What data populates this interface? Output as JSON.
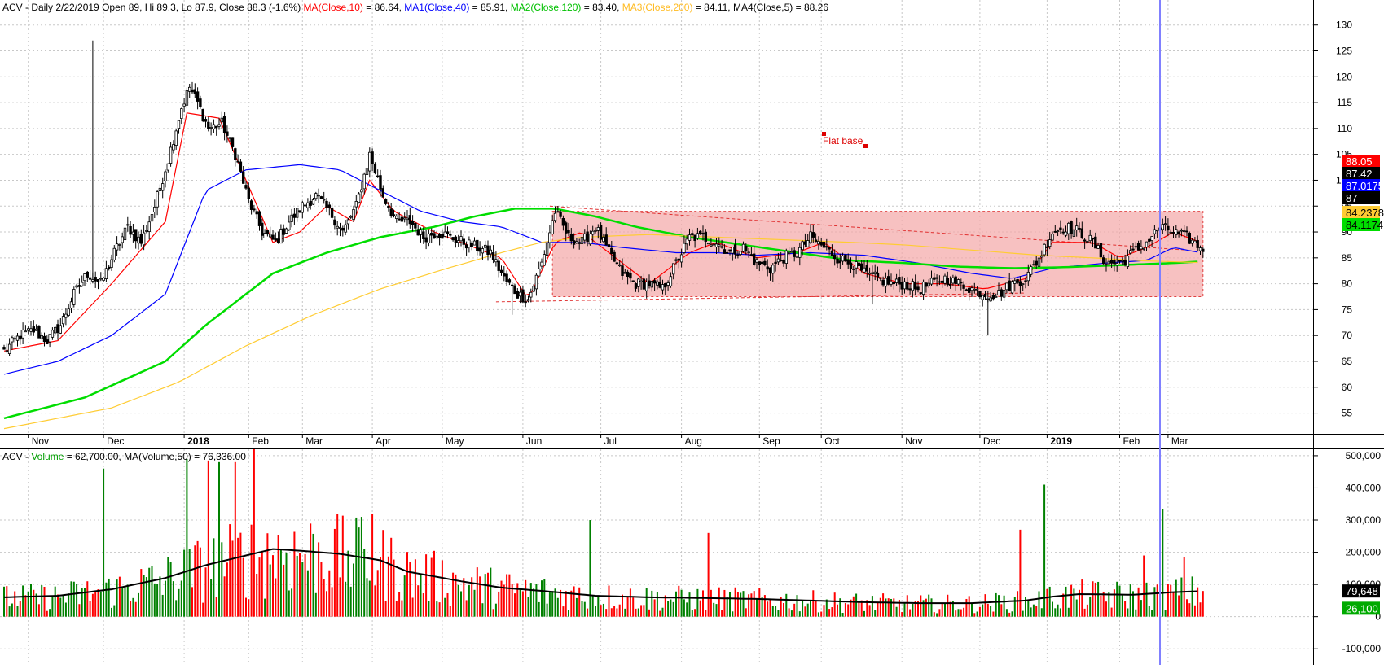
{
  "header": {
    "price_header": {
      "prefix": "ACV - Daily 2/22/2019 Open 89, Hi 89.3, Lo 87.9, Close 88.3 (-1.6%) ",
      "ma1_label": "MA(Close,10)",
      "ma1_value": " = 86.64, ",
      "ma2_label": "MA1(Close,40)",
      "ma2_value": " = 85.91, ",
      "ma3_label": "MA2(Close,120)",
      "ma3_value": " = 83.40, ",
      "ma4_label": "MA3(Close,200)",
      "ma4_value": " = 84.11, MA4(Close,5) = 88.26"
    },
    "volume_header": {
      "prefix": "ACV - ",
      "vol_label": "Volume",
      "rest": " = 62,700.00, MA(Volume,50) = 76,336.00"
    }
  },
  "annotation": {
    "flat_base": "Flat base"
  },
  "colors": {
    "up": "#008000",
    "down": "#ff0000",
    "candle": "#000000",
    "ma10": "#ff0000",
    "ma40": "#0000ff",
    "ma120": "#00dd00",
    "ma200": "#ffcc33",
    "base_fill": "#f4a6a6",
    "cursor": "#8080ff",
    "grid": "#c8c8c8"
  },
  "chart_data": [
    {
      "type": "candlestick",
      "title": "ACV - Daily 2/22/2019",
      "ylim": [
        51,
        132
      ],
      "y_ticks": [
        55,
        60,
        65,
        70,
        75,
        80,
        85,
        90,
        95,
        100,
        105,
        110,
        115,
        120,
        125,
        130
      ],
      "x_ticks": [
        "Nov",
        "Dec",
        "2018",
        "Feb",
        "Mar",
        "Apr",
        "May",
        "Jun",
        "Jul",
        "Aug",
        "Sep",
        "Oct",
        "Nov",
        "Dec",
        "2019",
        "Feb",
        "Mar"
      ],
      "price_anchors": [
        [
          0,
          67
        ],
        [
          6,
          70
        ],
        [
          11,
          71
        ],
        [
          16,
          69
        ],
        [
          21,
          72
        ],
        [
          26,
          78
        ],
        [
          31,
          82
        ],
        [
          36,
          80
        ],
        [
          41,
          86
        ],
        [
          46,
          91
        ],
        [
          51,
          88
        ],
        [
          56,
          95
        ],
        [
          61,
          104
        ],
        [
          66,
          114
        ],
        [
          69,
          118
        ],
        [
          72,
          115
        ],
        [
          76,
          110
        ],
        [
          81,
          111
        ],
        [
          86,
          105
        ],
        [
          91,
          96
        ],
        [
          96,
          90
        ],
        [
          101,
          88
        ],
        [
          106,
          92
        ],
        [
          111,
          95
        ],
        [
          116,
          97
        ],
        [
          121,
          94
        ],
        [
          126,
          90
        ],
        [
          131,
          95
        ],
        [
          136,
          105
        ],
        [
          141,
          97
        ],
        [
          146,
          92
        ],
        [
          151,
          92
        ],
        [
          156,
          89
        ],
        [
          161,
          90
        ],
        [
          166,
          89
        ],
        [
          171,
          88
        ],
        [
          176,
          87
        ],
        [
          181,
          86
        ],
        [
          186,
          81
        ],
        [
          191,
          78
        ],
        [
          195,
          77
        ],
        [
          200,
          84
        ],
        [
          205,
          94
        ],
        [
          210,
          89
        ],
        [
          215,
          88
        ],
        [
          220,
          91
        ],
        [
          225,
          86
        ],
        [
          230,
          82
        ],
        [
          235,
          80
        ],
        [
          240,
          80
        ],
        [
          245,
          79
        ],
        [
          250,
          84
        ],
        [
          255,
          89
        ],
        [
          260,
          89
        ],
        [
          265,
          88
        ],
        [
          270,
          86
        ],
        [
          275,
          87
        ],
        [
          280,
          84
        ],
        [
          285,
          83
        ],
        [
          290,
          85
        ],
        [
          295,
          86
        ],
        [
          300,
          89
        ],
        [
          305,
          87
        ],
        [
          310,
          85
        ],
        [
          315,
          84
        ],
        [
          320,
          82
        ],
        [
          325,
          81
        ],
        [
          330,
          80
        ],
        [
          335,
          80
        ],
        [
          340,
          79
        ],
        [
          345,
          80
        ],
        [
          350,
          81
        ],
        [
          355,
          80
        ],
        [
          360,
          79
        ],
        [
          365,
          78
        ],
        [
          370,
          78
        ],
        [
          375,
          80
        ],
        [
          380,
          81
        ],
        [
          385,
          85
        ],
        [
          390,
          90
        ],
        [
          395,
          91
        ],
        [
          400,
          90
        ],
        [
          405,
          88
        ],
        [
          410,
          84
        ],
        [
          415,
          84
        ],
        [
          420,
          86
        ],
        [
          425,
          88
        ],
        [
          430,
          91
        ],
        [
          435,
          90
        ],
        [
          440,
          89
        ],
        [
          445,
          87
        ]
      ],
      "ma_lines": [
        {
          "name": "MA(Close,10)",
          "color": "ma10",
          "values": [
            [
              0,
              67
            ],
            [
              20,
              69
            ],
            [
              40,
              80
            ],
            [
              60,
              92
            ],
            [
              68,
              113
            ],
            [
              80,
              112
            ],
            [
              90,
              100
            ],
            [
              100,
              88
            ],
            [
              110,
              90
            ],
            [
              120,
              95
            ],
            [
              130,
              92
            ],
            [
              136,
              100
            ],
            [
              145,
              94
            ],
            [
              160,
              90
            ],
            [
              175,
              87
            ],
            [
              185,
              85
            ],
            [
              195,
              77
            ],
            [
              205,
              88
            ],
            [
              215,
              90
            ],
            [
              225,
              86
            ],
            [
              240,
              80
            ],
            [
              255,
              86
            ],
            [
              265,
              88
            ],
            [
              280,
              85
            ],
            [
              295,
              86
            ],
            [
              305,
              88
            ],
            [
              320,
              82
            ],
            [
              335,
              80
            ],
            [
              350,
              80
            ],
            [
              365,
              79
            ],
            [
              380,
              81
            ],
            [
              390,
              88
            ],
            [
              405,
              88
            ],
            [
              415,
              85
            ],
            [
              425,
              87
            ],
            [
              435,
              90
            ],
            [
              445,
              88
            ]
          ]
        },
        {
          "name": "MA1(Close,40)",
          "color": "ma40",
          "values": [
            [
              0,
              62.5
            ],
            [
              20,
              65
            ],
            [
              40,
              70
            ],
            [
              60,
              78
            ],
            [
              75,
              98
            ],
            [
              90,
              102
            ],
            [
              110,
              103
            ],
            [
              125,
              102
            ],
            [
              140,
              98
            ],
            [
              155,
              94
            ],
            [
              170,
              92
            ],
            [
              185,
              91
            ],
            [
              200,
              88
            ],
            [
              215,
              88
            ],
            [
              230,
              87
            ],
            [
              250,
              86
            ],
            [
              265,
              86
            ],
            [
              280,
              85.5
            ],
            [
              300,
              86
            ],
            [
              320,
              85.5
            ],
            [
              340,
              84
            ],
            [
              360,
              82
            ],
            [
              375,
              81
            ],
            [
              390,
              83
            ],
            [
              410,
              84
            ],
            [
              425,
              84.5
            ],
            [
              435,
              87
            ],
            [
              445,
              86
            ]
          ]
        },
        {
          "name": "MA2(Close,120)",
          "color": "ma120",
          "values": [
            [
              0,
              54
            ],
            [
              30,
              58
            ],
            [
              60,
              65
            ],
            [
              75,
              72
            ],
            [
              100,
              82
            ],
            [
              120,
              86
            ],
            [
              140,
              89
            ],
            [
              160,
              91
            ],
            [
              175,
              93
            ],
            [
              190,
              94.5
            ],
            [
              205,
              94.5
            ],
            [
              220,
              93
            ],
            [
              235,
              91
            ],
            [
              255,
              89
            ],
            [
              275,
              87.5
            ],
            [
              295,
              86
            ],
            [
              315,
              84.5
            ],
            [
              335,
              84
            ],
            [
              355,
              83.3
            ],
            [
              375,
              83
            ],
            [
              395,
              83.2
            ],
            [
              415,
              83.6
            ],
            [
              435,
              84
            ],
            [
              445,
              84.3
            ]
          ]
        },
        {
          "name": "MA3(Close,200)",
          "color": "ma200",
          "values": [
            [
              0,
              52
            ],
            [
              40,
              56
            ],
            [
              65,
              61
            ],
            [
              90,
              68
            ],
            [
              115,
              74
            ],
            [
              140,
              79
            ],
            [
              165,
              83
            ],
            [
              185,
              86
            ],
            [
              200,
              88
            ],
            [
              215,
              89
            ],
            [
              240,
              89.5
            ],
            [
              265,
              89
            ],
            [
              290,
              88.5
            ],
            [
              315,
              88
            ],
            [
              335,
              87.5
            ],
            [
              360,
              86.5
            ],
            [
              385,
              85.5
            ],
            [
              405,
              85
            ],
            [
              425,
              84.4
            ],
            [
              445,
              84.1
            ]
          ]
        }
      ],
      "last_labels": [
        {
          "text": "88.05",
          "bg": "#ff0000",
          "fg": "#ffffff"
        },
        {
          "text": "87.42",
          "bg": "#000000",
          "fg": "#ffffff"
        },
        {
          "text": "87.0175",
          "bg": "#0000ff",
          "fg": "#ffffff"
        },
        {
          "text": "87",
          "bg": "#000000",
          "fg": "#ffffff"
        },
        {
          "text": "84.2378",
          "bg": "#ffcc33",
          "fg": "#000000"
        },
        {
          "text": "84.1174",
          "bg": "#00dd00",
          "fg": "#000000"
        }
      ],
      "flat_base": {
        "from_bar": 204,
        "to_bar": 446,
        "top": 94,
        "bottom": 77.5
      },
      "support_line": [
        [
          183,
          76.5
        ],
        [
          380,
          78.2
        ]
      ],
      "resistance_line": [
        [
          203,
          95
        ],
        [
          440,
          86.5
        ]
      ],
      "cursor_bar": 430
    },
    {
      "type": "bar",
      "title": "ACV - Volume",
      "ylim": [
        -150000,
        520000
      ],
      "y_ticks": [
        -100000,
        0,
        100000,
        200000,
        300000,
        400000,
        500000
      ],
      "y_tick_labels": [
        "-100,000",
        "0",
        "100,000",
        "200,000",
        "300,000",
        "400,000",
        "500,000"
      ],
      "ma_label": {
        "text": "79,648",
        "value": 79648
      },
      "last_label": {
        "text": "26,100",
        "value": 26100
      },
      "ma_volume": [
        [
          0,
          60000
        ],
        [
          20,
          65000
        ],
        [
          40,
          85000
        ],
        [
          60,
          120000
        ],
        [
          75,
          160000
        ],
        [
          90,
          190000
        ],
        [
          100,
          210000
        ],
        [
          110,
          205000
        ],
        [
          125,
          195000
        ],
        [
          140,
          175000
        ],
        [
          150,
          140000
        ],
        [
          170,
          110000
        ],
        [
          185,
          90000
        ],
        [
          200,
          80000
        ],
        [
          220,
          65000
        ],
        [
          240,
          60000
        ],
        [
          260,
          58000
        ],
        [
          280,
          55000
        ],
        [
          300,
          50000
        ],
        [
          320,
          45000
        ],
        [
          340,
          42000
        ],
        [
          360,
          42000
        ],
        [
          380,
          50000
        ],
        [
          390,
          62000
        ],
        [
          400,
          70000
        ],
        [
          420,
          68000
        ],
        [
          435,
          76000
        ],
        [
          445,
          79000
        ]
      ],
      "volume_spikes": [
        [
          37,
          460000
        ],
        [
          68,
          490000
        ],
        [
          76,
          485000
        ],
        [
          80,
          480000
        ],
        [
          86,
          480000
        ],
        [
          93,
          520000
        ],
        [
          133,
          310000
        ],
        [
          137,
          320000
        ],
        [
          218,
          300000
        ],
        [
          262,
          260000
        ],
        [
          378,
          270000
        ],
        [
          387,
          410000
        ],
        [
          431,
          335000
        ],
        [
          424,
          190000
        ],
        [
          439,
          185000
        ]
      ]
    }
  ]
}
